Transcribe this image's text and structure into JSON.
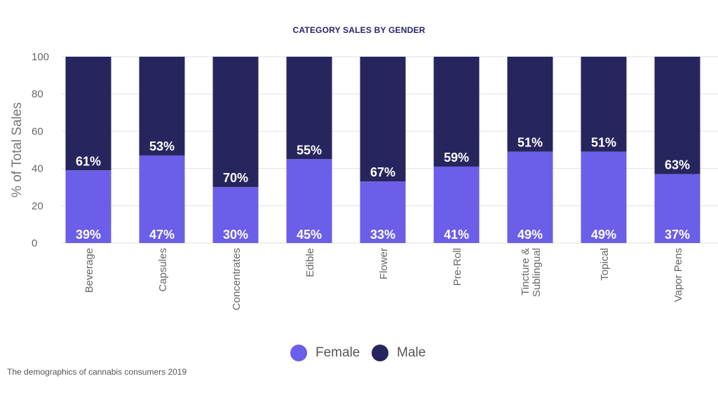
{
  "chart_data": {
    "type": "bar",
    "stacked": true,
    "title": "CATEGORY SALES BY GENDER",
    "ylabel": "% of Total Sales",
    "xlabel": "",
    "ylim": [
      0,
      100
    ],
    "yticks": [
      0,
      20,
      40,
      60,
      80,
      100
    ],
    "grid": true,
    "legend_position": "bottom",
    "categories": [
      "Beverage",
      "Capsules",
      "Concentrates",
      "Edible",
      "Flower",
      "Pre-Roll",
      "Tincture & Sublingual",
      "Topical",
      "Vapor Pens"
    ],
    "category_label_lines": [
      [
        "Beverage"
      ],
      [
        "Capsules"
      ],
      [
        "Concentrates"
      ],
      [
        "Edible"
      ],
      [
        "Flower"
      ],
      [
        "Pre-Roll"
      ],
      [
        "Tincture &",
        "Sublingual"
      ],
      [
        "Topical"
      ],
      [
        "Vapor Pens"
      ]
    ],
    "series": [
      {
        "name": "Female",
        "color": "#6b5ee8",
        "values": [
          39,
          47,
          30,
          45,
          33,
          41,
          49,
          49,
          37
        ],
        "labels": [
          "39%",
          "47%",
          "30%",
          "45%",
          "33%",
          "41%",
          "49%",
          "49%",
          "37%"
        ]
      },
      {
        "name": "Male",
        "color": "#27255e",
        "values": [
          61,
          53,
          70,
          55,
          67,
          59,
          51,
          51,
          63
        ],
        "labels": [
          "61%",
          "53%",
          "70%",
          "55%",
          "67%",
          "59%",
          "51%",
          "51%",
          "63%"
        ]
      }
    ]
  },
  "source_note": "The demographics of cannabis consumers 2019"
}
